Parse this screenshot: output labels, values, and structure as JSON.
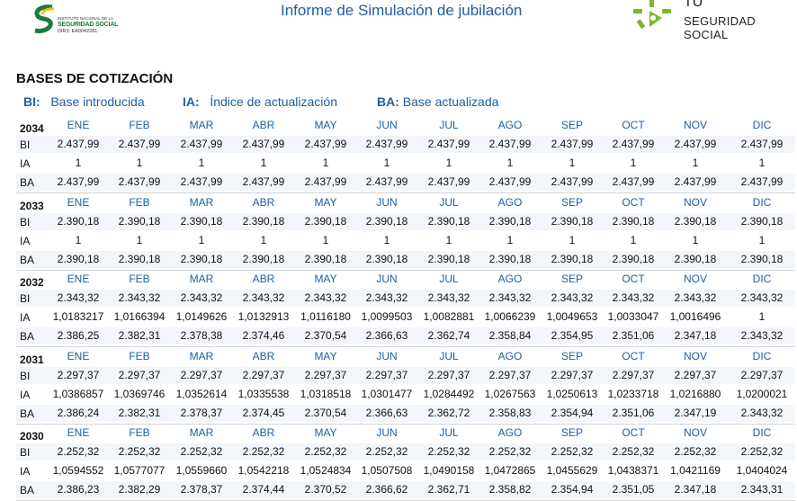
{
  "header": {
    "title": "Informe de Simulación de jubilación",
    "left_logo": {
      "org_line1": "INSTITUTO NACIONAL DE LA",
      "org_line2": "SEGURIDAD SOCIAL",
      "org_line3": "DIR3: EA0042281"
    },
    "right_logo": {
      "line1": "TU",
      "line2": "SEGURIDAD SOCIAL"
    },
    "colors": {
      "brand_blue": "#1f5fa3",
      "brand_green": "#1b7a3a",
      "right_logo_accent": "#7ab929"
    }
  },
  "section_title": "BASES DE COTIZACIÓN",
  "legend": [
    {
      "key": "BI:",
      "text": "Base introducida"
    },
    {
      "key": "IA:",
      "text": "Índice de actualización"
    },
    {
      "key": "BA:",
      "text": "Base actualizada"
    }
  ],
  "months": [
    "ENE",
    "FEB",
    "MAR",
    "ABR",
    "MAY",
    "JUN",
    "JUL",
    "AGO",
    "SEP",
    "OCT",
    "NOV",
    "DIC"
  ],
  "row_labels": {
    "bi": "BI",
    "ia": "IA",
    "ba": "BA"
  },
  "years": [
    {
      "year": "2034",
      "bi": [
        "2.437,99",
        "2.437,99",
        "2.437,99",
        "2.437,99",
        "2.437,99",
        "2.437,99",
        "2.437,99",
        "2.437,99",
        "2.437,99",
        "2.437,99",
        "2.437,99",
        "2.437,99"
      ],
      "ia": [
        "1",
        "1",
        "1",
        "1",
        "1",
        "1",
        "1",
        "1",
        "1",
        "1",
        "1",
        "1"
      ],
      "ba": [
        "2.437,99",
        "2.437,99",
        "2.437,99",
        "2.437,99",
        "2.437,99",
        "2.437,99",
        "2.437,99",
        "2.437,99",
        "2.437,99",
        "2.437,99",
        "2.437,99",
        "2.437,99"
      ]
    },
    {
      "year": "2033",
      "bi": [
        "2.390,18",
        "2.390,18",
        "2.390,18",
        "2.390,18",
        "2.390,18",
        "2.390,18",
        "2.390,18",
        "2.390,18",
        "2.390,18",
        "2.390,18",
        "2.390,18",
        "2.390,18"
      ],
      "ia": [
        "1",
        "1",
        "1",
        "1",
        "1",
        "1",
        "1",
        "1",
        "1",
        "1",
        "1",
        "1"
      ],
      "ba": [
        "2.390,18",
        "2.390,18",
        "2.390,18",
        "2.390,18",
        "2.390,18",
        "2.390,18",
        "2.390,18",
        "2.390,18",
        "2.390,18",
        "2.390,18",
        "2.390,18",
        "2.390,18"
      ]
    },
    {
      "year": "2032",
      "bi": [
        "2.343,32",
        "2.343,32",
        "2.343,32",
        "2.343,32",
        "2.343,32",
        "2.343,32",
        "2.343,32",
        "2.343,32",
        "2.343,32",
        "2.343,32",
        "2.343,32",
        "2.343,32"
      ],
      "ia": [
        "1,0183217",
        "1,0166394",
        "1,0149626",
        "1,0132913",
        "1,0116180",
        "1,0099503",
        "1,0082881",
        "1,0066239",
        "1,0049653",
        "1,0033047",
        "1,0016496",
        "1"
      ],
      "ba": [
        "2.386,25",
        "2.382,31",
        "2.378,38",
        "2.374,46",
        "2.370,54",
        "2.366,63",
        "2.362,74",
        "2.358,84",
        "2.354,95",
        "2.351,06",
        "2.347,18",
        "2.343,32"
      ]
    },
    {
      "year": "2031",
      "bi": [
        "2.297,37",
        "2.297,37",
        "2.297,37",
        "2.297,37",
        "2.297,37",
        "2.297,37",
        "2.297,37",
        "2.297,37",
        "2.297,37",
        "2.297,37",
        "2.297,37",
        "2.297,37"
      ],
      "ia": [
        "1,0386857",
        "1,0369746",
        "1,0352614",
        "1,0335538",
        "1,0318518",
        "1,0301477",
        "1,0284492",
        "1,0267563",
        "1,0250613",
        "1,0233718",
        "1,0216880",
        "1,0200021"
      ],
      "ba": [
        "2.386,24",
        "2.382,31",
        "2.378,37",
        "2.374,45",
        "2.370,54",
        "2.366,63",
        "2.362,72",
        "2.358,83",
        "2.354,94",
        "2.351,06",
        "2.347,19",
        "2.343,32"
      ]
    },
    {
      "year": "2030",
      "bi": [
        "2.252,32",
        "2.252,32",
        "2.252,32",
        "2.252,32",
        "2.252,32",
        "2.252,32",
        "2.252,32",
        "2.252,32",
        "2.252,32",
        "2.252,32",
        "2.252,32",
        "2.252,32"
      ],
      "ia": [
        "1,0594552",
        "1,0577077",
        "1,0559660",
        "1,0542218",
        "1,0524834",
        "1,0507508",
        "1,0490158",
        "1,0472865",
        "1,0455629",
        "1,0438371",
        "1,0421169",
        "1,0404024"
      ],
      "ba": [
        "2.386,23",
        "2.382,29",
        "2.378,37",
        "2.374,44",
        "2.370,52",
        "2.366,62",
        "2.362,71",
        "2.358,82",
        "2.354,94",
        "2.351,05",
        "2.347,18",
        "2.343,31"
      ]
    }
  ]
}
